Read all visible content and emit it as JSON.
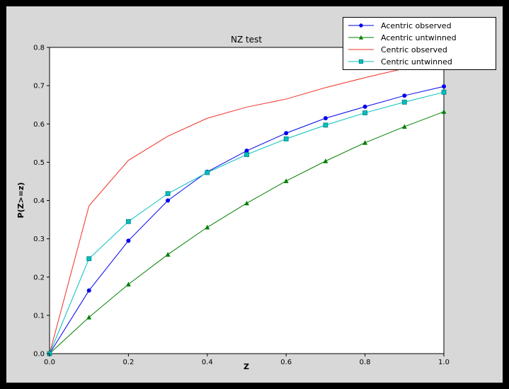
{
  "colors": {
    "window_frame": "#000000",
    "figure_background": "#d8d8d8",
    "plot_background": "#ffffff",
    "axis": "#000000"
  },
  "chart_data": {
    "type": "line",
    "title": "NZ test",
    "xlabel": "Z",
    "ylabel": "P(Z>=z)",
    "xlim": [
      0.0,
      1.0
    ],
    "ylim": [
      0.0,
      0.8
    ],
    "xticks": [
      "0.0",
      "0.2",
      "0.4",
      "0.6",
      "0.8",
      "1.0"
    ],
    "yticks": [
      "0.0",
      "0.1",
      "0.2",
      "0.3",
      "0.4",
      "0.5",
      "0.6",
      "0.7",
      "0.8"
    ],
    "grid": false,
    "legend_position": "upper right",
    "x": [
      0.0,
      0.1,
      0.2,
      0.3,
      0.4,
      0.5,
      0.6,
      0.7,
      0.8,
      0.9,
      1.0
    ],
    "series": [
      {
        "name": "Acentric observed",
        "color": "#0000ee",
        "marker": "circle",
        "values": [
          0.0,
          0.165,
          0.295,
          0.4,
          0.475,
          0.53,
          0.576,
          0.615,
          0.645,
          0.674,
          0.698
        ]
      },
      {
        "name": "Acentric untwinned",
        "color": "#008000",
        "marker": "triangle",
        "values": [
          0.0,
          0.095,
          0.181,
          0.259,
          0.33,
          0.393,
          0.451,
          0.503,
          0.551,
          0.593,
          0.632
        ]
      },
      {
        "name": "Centric observed",
        "color": "#f03025",
        "marker": "none",
        "values": [
          0.0,
          0.386,
          0.505,
          0.568,
          0.615,
          0.644,
          0.665,
          0.695,
          0.721,
          0.745,
          0.762
        ]
      },
      {
        "name": "Centric untwinned",
        "color": "#00bfbf",
        "marker": "square",
        "values": [
          0.0,
          0.248,
          0.345,
          0.418,
          0.473,
          0.52,
          0.561,
          0.597,
          0.629,
          0.657,
          0.683
        ]
      }
    ]
  }
}
